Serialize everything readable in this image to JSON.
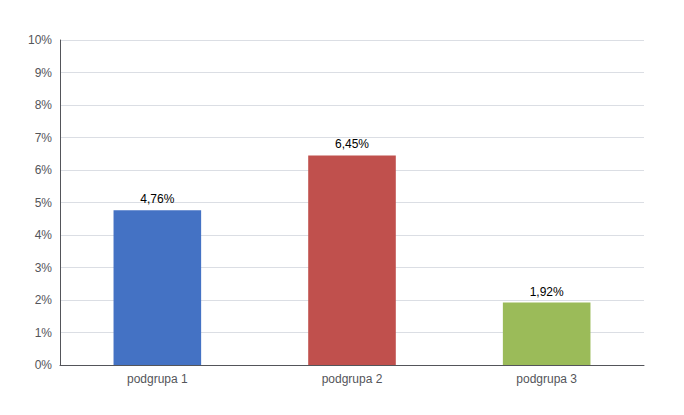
{
  "chart_data": {
    "type": "bar",
    "categories": [
      "podgrupa 1",
      "podgrupa 2",
      "podgrupa 3"
    ],
    "values": [
      4.76,
      6.45,
      1.92
    ],
    "value_labels": [
      "4,76%",
      "6,45%",
      "1,92%"
    ],
    "data_labels": true,
    "colors": [
      "#4472C4",
      "#C0504D",
      "#9BBB59"
    ],
    "ylim": [
      0,
      10
    ],
    "yticks": [
      {
        "value": 0,
        "label": "0%"
      },
      {
        "value": 1,
        "label": "1%"
      },
      {
        "value": 2,
        "label": "2%"
      },
      {
        "value": 3,
        "label": "3%"
      },
      {
        "value": 4,
        "label": "4%"
      },
      {
        "value": 5,
        "label": "5%"
      },
      {
        "value": 6,
        "label": "6%"
      },
      {
        "value": 7,
        "label": "7%"
      },
      {
        "value": 8,
        "label": "8%"
      },
      {
        "value": 9,
        "label": "9%"
      },
      {
        "value": 10,
        "label": "10%"
      }
    ],
    "grid": true
  }
}
